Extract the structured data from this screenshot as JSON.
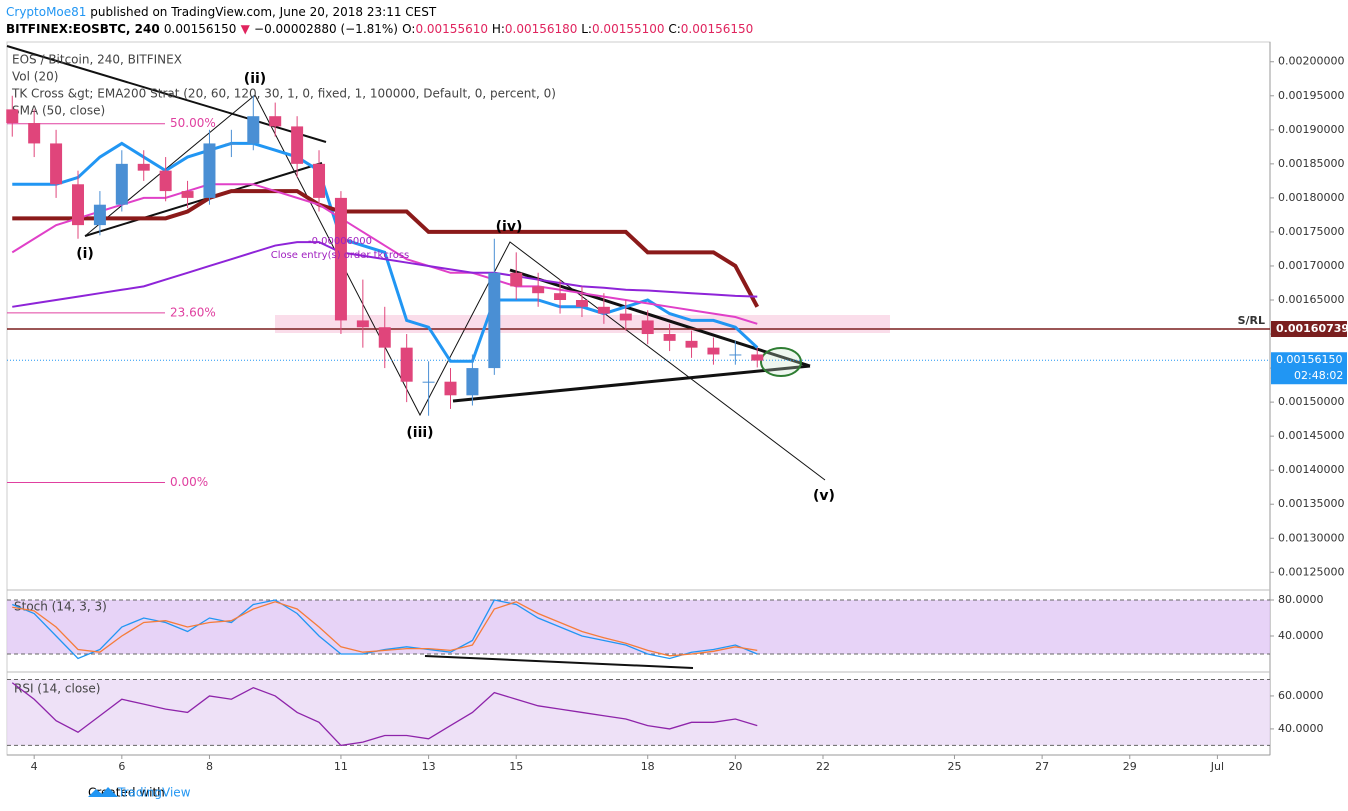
{
  "header": {
    "author": "CryptoMoe81",
    "published": "published on TradingView.com, June 20, 2018 23:11 CEST",
    "symbol": "BITFINEX:EOSBTC, 240",
    "price": "0.00156150",
    "arrow": "▼",
    "change": "−0.00002880 (−1.81%)",
    "ohlc": [
      {
        "key": "O:",
        "value": "0.00155610"
      },
      {
        "key": "H:",
        "value": "0.00156180"
      },
      {
        "key": "L:",
        "value": "0.00155100"
      },
      {
        "key": "C:",
        "value": "0.00156150"
      }
    ]
  },
  "legend": [
    "EOS / Bitcoin, 240, BITFINEX",
    "Vol (20)",
    "TK Cross &gt; EMA200 Strat (20, 60, 120, 30, 1, 0, fixed, 1, 100000, Default, 0, percent, 0)",
    "SMA (50, close)"
  ],
  "chart_data": [
    {
      "type": "candlestick",
      "up_color": "#4a8fd4",
      "down_color": "#e0457b",
      "x": [
        3.5,
        4,
        4.5,
        5,
        5.5,
        6,
        6.5,
        7,
        7.5,
        8,
        8.5,
        9,
        9.5,
        10,
        10.5,
        11,
        11.5,
        12,
        12.5,
        13,
        13.5,
        14,
        14.5,
        15,
        15.5,
        16,
        16.5,
        17,
        17.5,
        18,
        18.5,
        19,
        19.5,
        20,
        20.5
      ],
      "open": [
        0.00193,
        0.00191,
        0.00188,
        0.00182,
        0.00176,
        0.00179,
        0.00185,
        0.00184,
        0.00181,
        0.0018,
        0.00188,
        0.00188,
        0.00192,
        0.001905,
        0.00185,
        0.0018,
        0.00162,
        0.00161,
        0.00158,
        0.00153,
        0.00153,
        0.00151,
        0.00155,
        0.00169,
        0.00167,
        0.00166,
        0.00165,
        0.00164,
        0.00163,
        0.00162,
        0.0016,
        0.00159,
        0.00158,
        0.00157,
        0.00157
      ],
      "high": [
        0.00195,
        0.00193,
        0.0019,
        0.00184,
        0.00181,
        0.00187,
        0.00187,
        0.00186,
        0.001825,
        0.0019,
        0.0019,
        0.00195,
        0.00194,
        0.00192,
        0.00187,
        0.00181,
        0.00168,
        0.00164,
        0.0016,
        0.00156,
        0.00155,
        0.00157,
        0.00174,
        0.00172,
        0.00169,
        0.00168,
        0.00167,
        0.00166,
        0.00165,
        0.001635,
        0.001615,
        0.001605,
        0.001595,
        0.00159,
        0.00158
      ],
      "low": [
        0.00189,
        0.00186,
        0.0018,
        0.00174,
        0.001745,
        0.00178,
        0.001825,
        0.001795,
        0.001785,
        0.00179,
        0.00186,
        0.00187,
        0.00189,
        0.00183,
        0.00178,
        0.0016,
        0.00158,
        0.00155,
        0.0015,
        0.00148,
        0.00149,
        0.001495,
        0.00154,
        0.00165,
        0.00164,
        0.00163,
        0.001625,
        0.001615,
        0.001605,
        0.001585,
        0.001575,
        0.001565,
        0.001555,
        0.001555,
        0.001551
      ],
      "close": [
        0.00191,
        0.00188,
        0.00182,
        0.00176,
        0.00179,
        0.00185,
        0.00184,
        0.00181,
        0.0018,
        0.00188,
        0.00188,
        0.00192,
        0.001905,
        0.00185,
        0.0018,
        0.00162,
        0.00161,
        0.00158,
        0.00153,
        0.00153,
        0.00151,
        0.00155,
        0.00169,
        0.00167,
        0.00166,
        0.00165,
        0.00164,
        0.00163,
        0.00162,
        0.0016,
        0.00159,
        0.00158,
        0.00157,
        0.00157,
        0.001561
      ],
      "overlays": [
        {
          "color": "#2196f3",
          "width": 3,
          "values": [
            0.00182,
            0.00182,
            0.00182,
            0.00183,
            0.00186,
            0.00188,
            0.00186,
            0.00184,
            0.00186,
            0.00187,
            0.00188,
            0.00188,
            0.00187,
            0.00186,
            0.00184,
            0.00174,
            0.00173,
            0.00172,
            0.00162,
            0.00161,
            0.00156,
            0.00156,
            0.00165,
            0.00165,
            0.00165,
            0.00164,
            0.00164,
            0.00163,
            0.00164,
            0.00165,
            0.00163,
            0.00162,
            0.00162,
            0.00161,
            0.00158
          ]
        },
        {
          "color": "#8b1a1a",
          "width": 4,
          "values": [
            0.00177,
            0.00177,
            0.00177,
            0.00177,
            0.00177,
            0.00177,
            0.00177,
            0.00177,
            0.00178,
            0.0018,
            0.00181,
            0.00181,
            0.00181,
            0.00181,
            0.00179,
            0.00178,
            0.00178,
            0.00178,
            0.00178,
            0.00175,
            0.00175,
            0.00175,
            0.00175,
            0.00175,
            0.00175,
            0.00175,
            0.00175,
            0.00175,
            0.00175,
            0.00172,
            0.00172,
            0.00172,
            0.00172,
            0.0017,
            0.00164
          ]
        },
        {
          "color": "#e040c8",
          "width": 2,
          "values": [
            0.00172,
            0.00174,
            0.00176,
            0.00177,
            0.00178,
            0.00179,
            0.0018,
            0.0018,
            0.00181,
            0.00182,
            0.00182,
            0.00182,
            0.00181,
            0.0018,
            0.00179,
            0.00177,
            0.00175,
            0.00173,
            0.00171,
            0.0017,
            0.00169,
            0.00169,
            0.00168,
            0.00167,
            0.00167,
            0.001665,
            0.00166,
            0.001655,
            0.00165,
            0.001645,
            0.00164,
            0.001635,
            0.00163,
            0.001625,
            0.001615
          ]
        },
        {
          "color": "#8e24d8",
          "width": 2,
          "values": [
            0.00164,
            0.001645,
            0.00165,
            0.001655,
            0.00166,
            0.001665,
            0.00167,
            0.00168,
            0.00169,
            0.0017,
            0.00171,
            0.00172,
            0.00173,
            0.001735,
            0.001735,
            0.00172,
            0.001715,
            0.00171,
            0.001705,
            0.0017,
            0.001695,
            0.00169,
            0.00169,
            0.001685,
            0.00168,
            0.001675,
            0.00167,
            0.001668,
            0.001665,
            0.001664,
            0.001662,
            0.00166,
            0.001658,
            0.001656,
            0.001655
          ]
        }
      ],
      "fib_levels": [
        {
          "value": 0.001909,
          "label": "50.00%"
        },
        {
          "value": 0.001631,
          "label": "23.60%"
        },
        {
          "value": 0.001382,
          "label": "0.00%"
        }
      ],
      "sr_level": {
        "value": 0.00160739,
        "label": "0.00160739",
        "name": "S/RL"
      },
      "last_price": {
        "value": 0.0015615,
        "label": "0.00156150"
      },
      "countdown": "02:48:02",
      "annotations": [
        "(i)",
        "(ii)",
        "(iii)",
        "(iv)",
        "(v)",
        "-0.00006000",
        "Close entry(s) order tkcross"
      ],
      "ylim": [
        0.001224,
        0.002029
      ],
      "yticks": [
        {
          "value": 0.002,
          "label": "0.00200000"
        },
        {
          "value": 0.00195,
          "label": "0.00195000"
        },
        {
          "value": 0.0019,
          "label": "0.00190000"
        },
        {
          "value": 0.00185,
          "label": "0.00185000"
        },
        {
          "value": 0.0018,
          "label": "0.00180000"
        },
        {
          "value": 0.00175,
          "label": "0.00175000"
        },
        {
          "value": 0.0017,
          "label": "0.00170000"
        },
        {
          "value": 0.00165,
          "label": "0.00165000"
        },
        {
          "value": 0.0016,
          "label": "0.00160000"
        },
        {
          "value": 0.00155,
          "label": "0.00155000"
        },
        {
          "value": 0.0015,
          "label": "0.00150000"
        },
        {
          "value": 0.00145,
          "label": "0.00145000"
        },
        {
          "value": 0.0014,
          "label": "0.00140000"
        },
        {
          "value": 0.00135,
          "label": "0.00135000"
        },
        {
          "value": 0.0013,
          "label": "0.00130000"
        },
        {
          "value": 0.00125,
          "label": "0.00125000"
        }
      ],
      "xlim": [
        3.38,
        32.2
      ],
      "xticks": [
        4,
        6,
        8,
        11,
        13,
        15,
        18,
        20,
        22,
        25,
        27,
        29,
        {
          "value": 31,
          "label": "Jul"
        }
      ]
    },
    {
      "type": "line",
      "title": "Stoch (14, 3, 3)",
      "band_color": "#e1c8f5",
      "bands": [
        20,
        80
      ],
      "x": [
        3.5,
        4,
        4.5,
        5,
        5.5,
        6,
        6.5,
        7,
        7.5,
        8,
        8.5,
        9,
        9.5,
        10,
        10.5,
        11,
        11.5,
        12,
        12.5,
        13,
        13.5,
        14,
        14.5,
        15,
        15.5,
        16,
        16.5,
        17,
        17.5,
        18,
        18.5,
        19,
        19.5,
        20,
        20.5
      ],
      "series": [
        {
          "color": "#2196f3",
          "values": [
            75,
            65,
            40,
            15,
            25,
            50,
            60,
            55,
            45,
            60,
            55,
            75,
            80,
            65,
            40,
            20,
            20,
            25,
            28,
            25,
            22,
            35,
            80,
            75,
            60,
            50,
            40,
            35,
            30,
            20,
            15,
            22,
            25,
            30,
            20
          ]
        },
        {
          "color": "#f57c3a",
          "values": [
            72,
            68,
            50,
            25,
            22,
            40,
            55,
            57,
            50,
            55,
            57,
            70,
            78,
            70,
            50,
            28,
            22,
            24,
            26,
            26,
            24,
            30,
            70,
            78,
            65,
            55,
            45,
            38,
            32,
            24,
            18,
            20,
            23,
            28,
            24
          ]
        }
      ],
      "ylim": [
        0,
        88.9
      ],
      "yticks": [
        {
          "value": 80,
          "label": "80.0000"
        },
        {
          "value": 40,
          "label": "40.0000"
        }
      ]
    },
    {
      "type": "line",
      "title": "RSI (14, close)",
      "band_color": "#eadaf5",
      "bands": [
        30,
        70
      ],
      "x": [
        3.5,
        4,
        4.5,
        5,
        5.5,
        6,
        6.5,
        7,
        7.5,
        8,
        8.5,
        9,
        9.5,
        10,
        10.5,
        11,
        11.5,
        12,
        12.5,
        13,
        13.5,
        14,
        14.5,
        15,
        15.5,
        16,
        16.5,
        17,
        17.5,
        18,
        18.5,
        19,
        19.5,
        20,
        20.5
      ],
      "series": [
        {
          "color": "#8e24aa",
          "values": [
            68,
            58,
            45,
            38,
            48,
            58,
            55,
            52,
            50,
            60,
            58,
            65,
            60,
            50,
            44,
            30,
            32,
            36,
            36,
            34,
            42,
            50,
            62,
            58,
            54,
            52,
            50,
            48,
            46,
            42,
            40,
            44,
            44,
            46,
            42
          ]
        }
      ],
      "ylim": [
        26,
        73.3
      ],
      "yticks": [
        {
          "value": 60,
          "label": "60.0000"
        },
        {
          "value": 40,
          "label": "40.0000"
        }
      ]
    }
  ],
  "footer": {
    "created": "Created with",
    "brand": "TradingView"
  }
}
